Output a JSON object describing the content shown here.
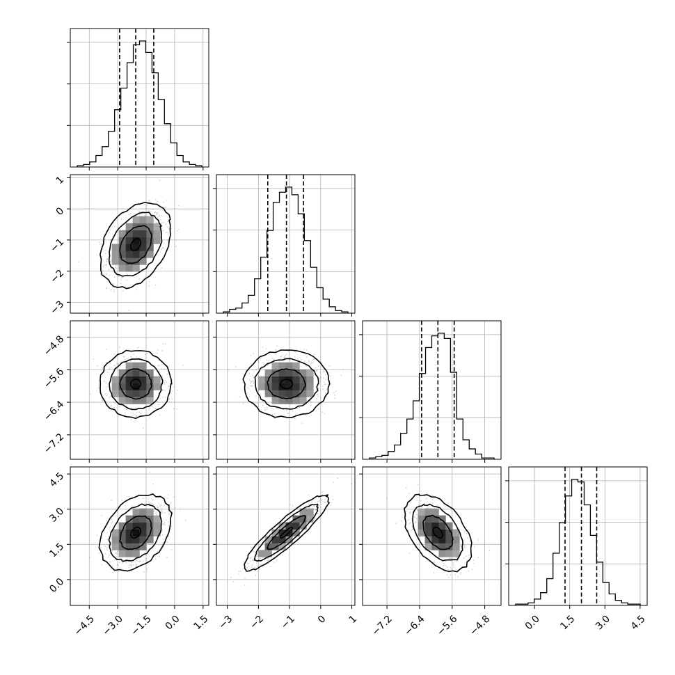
{
  "chart_data": {
    "type": "corner",
    "dimensions": [
      {
        "ticks": [
          "−4.5",
          "−3.0",
          "−1.5",
          "0.0",
          "1.5"
        ],
        "tick_values": [
          -4.5,
          -3.0,
          -1.5,
          0.0,
          1.5
        ],
        "range": [
          -5.5,
          1.8
        ],
        "quantiles": [
          -2.9,
          -2.05,
          -1.1
        ],
        "hist": [
          1,
          2,
          4,
          9,
          16,
          28,
          45,
          62,
          82,
          96,
          99,
          90,
          74,
          53,
          34,
          19,
          9,
          4,
          2,
          1
        ]
      },
      {
        "ticks": [
          "−3",
          "−2",
          "−1",
          "0",
          "1"
        ],
        "tick_values": [
          -3,
          -2,
          -1,
          0,
          1
        ],
        "range": [
          -3.35,
          1.1
        ],
        "quantiles": [
          -1.7,
          -1.1,
          -0.55
        ],
        "hist": [
          1,
          3,
          4,
          8,
          14,
          27,
          44,
          65,
          87,
          95,
          99,
          93,
          78,
          57,
          36,
          20,
          11,
          5,
          2,
          1
        ]
      },
      {
        "ticks": [
          "−7.2",
          "−6.4",
          "−5.6",
          "−4.8"
        ],
        "tick_values": [
          -7.2,
          -6.4,
          -5.6,
          -4.8
        ],
        "range": [
          -7.8,
          -4.4
        ],
        "quantiles": [
          -6.35,
          -5.95,
          -5.55
        ],
        "hist": [
          1,
          2,
          3,
          6,
          11,
          20,
          31,
          45,
          66,
          86,
          95,
          97,
          93,
          67,
          31,
          15,
          8,
          4,
          1,
          1
        ]
      },
      {
        "ticks": [
          "0.0",
          "1.5",
          "3.0",
          "4.5"
        ],
        "tick_values": [
          0.0,
          1.5,
          3.0,
          4.5
        ],
        "range": [
          -1.1,
          4.8
        ],
        "quantiles": [
          1.3,
          2.0,
          2.65
        ],
        "hist": [
          1,
          1,
          2,
          5,
          10,
          21,
          41,
          65,
          86,
          99,
          97,
          79,
          55,
          34,
          18,
          9,
          4,
          2,
          1,
          1
        ]
      }
    ],
    "pairs": [
      {
        "row": 1,
        "col": 0,
        "mean": [
          -2.05,
          -1.15
        ],
        "sd": [
          0.75,
          0.55
        ],
        "rho": 0.35
      },
      {
        "row": 2,
        "col": 0,
        "mean": [
          -2.05,
          -5.95
        ],
        "sd": [
          0.75,
          0.33
        ],
        "rho": 0.0
      },
      {
        "row": 2,
        "col": 1,
        "mean": [
          -1.1,
          -5.95
        ],
        "sd": [
          0.55,
          0.33
        ],
        "rho": 0.0
      },
      {
        "row": 3,
        "col": 0,
        "mean": [
          -2.05,
          2.0
        ],
        "sd": [
          0.75,
          0.65
        ],
        "rho": 0.35
      },
      {
        "row": 3,
        "col": 1,
        "mean": [
          -1.1,
          2.0
        ],
        "sd": [
          0.55,
          0.65
        ],
        "rho": 0.9
      },
      {
        "row": 3,
        "col": 2,
        "mean": [
          -5.95,
          2.0
        ],
        "sd": [
          0.33,
          0.65
        ],
        "rho": -0.45
      }
    ]
  }
}
